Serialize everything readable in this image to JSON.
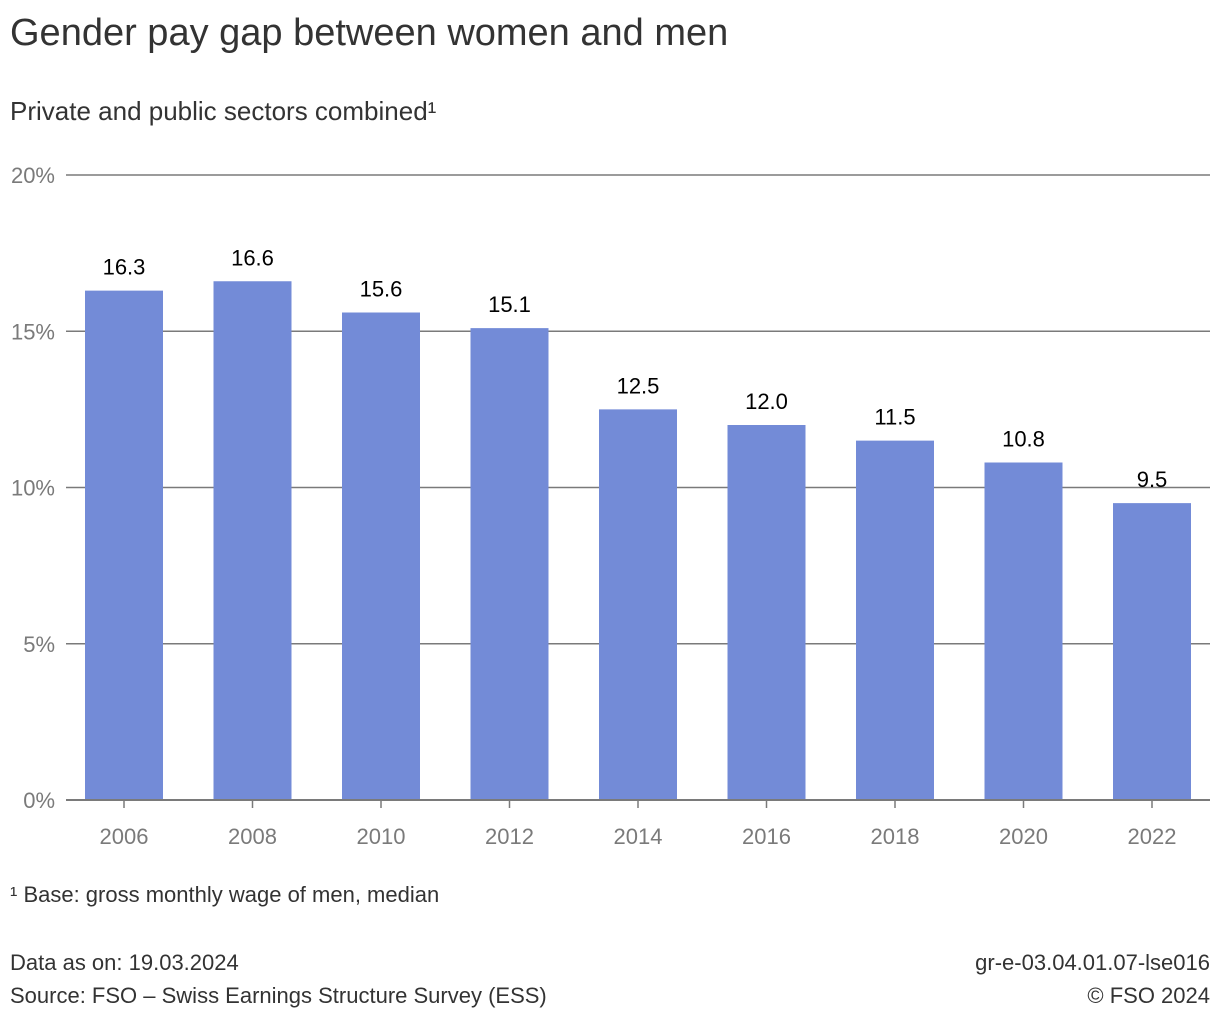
{
  "chart_data": {
    "type": "bar",
    "title": "Gender pay gap between women and men",
    "subtitle": "Private and public sectors combined¹",
    "categories": [
      "2006",
      "2008",
      "2010",
      "2012",
      "2014",
      "2016",
      "2018",
      "2020",
      "2022"
    ],
    "values": [
      16.3,
      16.6,
      15.6,
      15.1,
      12.5,
      12.0,
      11.5,
      10.8,
      9.5
    ],
    "data_labels": [
      "16.3",
      "16.6",
      "15.6",
      "15.1",
      "12.5",
      "12.0",
      "11.5",
      "10.8",
      "9.5"
    ],
    "ylim": [
      0,
      20
    ],
    "yticks": [
      0,
      5,
      10,
      15,
      20
    ],
    "ytick_labels": [
      "0%",
      "5%",
      "10%",
      "15%",
      "20%"
    ],
    "grid": true,
    "bar_color": "#738bd7"
  },
  "footnote": "¹ Base: gross monthly wage of men, median",
  "data_date": "Data as on: 19.03.2024",
  "source": "Source: FSO – Swiss Earnings Structure Survey (ESS)",
  "chart_id": "gr-e-03.04.01.07-lse016",
  "copyright": "© FSO 2024"
}
